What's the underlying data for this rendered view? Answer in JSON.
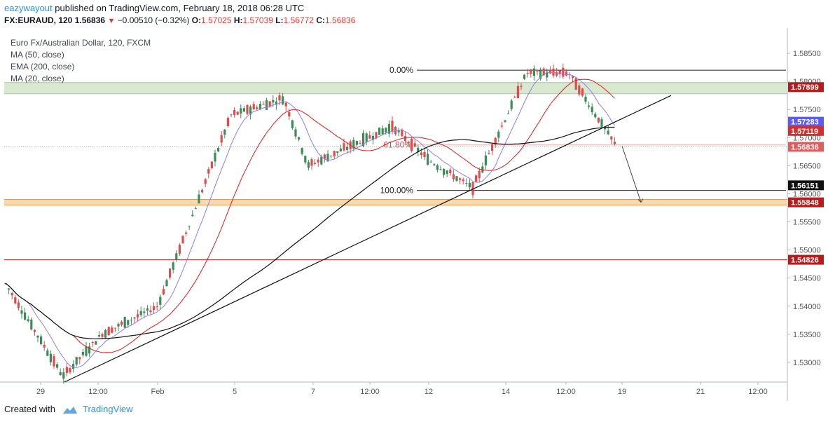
{
  "header": {
    "user": "eazywayout",
    "published_text": "published on TradingView.com, February 18, 2018 06:28 UTC",
    "symbol": "FX:EURAUD, 120",
    "last": "1.56836",
    "change": "−0.00510 (−0.32%)",
    "open_label": "O:",
    "open": "1.57025",
    "high_label": "H:",
    "high": "1.57039",
    "low_label": "L:",
    "low": "1.56772",
    "close_label": "C:",
    "close": "1.56836"
  },
  "legend": {
    "title": "Euro Fx/Australian Dollar, 120, FXCM",
    "ma50": "MA (50, close)",
    "ema200": "EMA (200, close)",
    "ma20": "MA (20, close)"
  },
  "footer": {
    "created_with": "Created with",
    "brand": "TradingView"
  },
  "colors": {
    "up": "#3c8c5a",
    "down": "#e04b4b",
    "ma20": "#8b7cf6",
    "ma50": "#e41a1c",
    "ema200": "#111111",
    "support_zone": "#f5cfa0",
    "resistance_zone": "#cfe3c4"
  },
  "chart_data": {
    "type": "candlestick",
    "title": "Euro Fx/Australian Dollar, 120, FXCM",
    "ylim": [
      1.5265,
      1.5895
    ],
    "y_ticks": [
      "1.58500",
      "1.58000",
      "1.57500",
      "1.57000",
      "1.56500",
      "1.56000",
      "1.55500",
      "1.55000",
      "1.54500",
      "1.54000",
      "1.53500",
      "1.53000"
    ],
    "x_ticks": [
      "29",
      "12:00",
      "Feb",
      "5",
      "7",
      "12:00",
      "12",
      "14",
      "12:00",
      "19",
      "21",
      "12:00"
    ],
    "price_labels": [
      {
        "text": "1.57899",
        "bg": "#b71c1c",
        "fg": "#ffffff",
        "value": 1.57899
      },
      {
        "text": "1.57283",
        "bg": "#5b5bf5",
        "fg": "#ffffff",
        "value": 1.57283
      },
      {
        "text": "1.57119",
        "bg": "#d32f2f",
        "fg": "#ffffff",
        "value": 1.57119
      },
      {
        "text": "1.56836",
        "bg": "#e35b5b",
        "fg": "#ffffff",
        "value": 1.56836
      },
      {
        "text": "1.56151",
        "bg": "#111111",
        "fg": "#ffffff",
        "value": 1.56151
      },
      {
        "text": "1.55848",
        "bg": "#b71c1c",
        "fg": "#ffffff",
        "value": 1.55848
      },
      {
        "text": "1.54826",
        "bg": "#b71c1c",
        "fg": "#ffffff",
        "value": 1.54826
      }
    ],
    "fibonacci": [
      {
        "label": "0.00%",
        "value": 1.582
      },
      {
        "label": "61.80%",
        "value": 1.5687
      },
      {
        "label": "100.00%",
        "value": 1.5606
      }
    ],
    "zones": [
      {
        "name": "resistance",
        "from": 1.5778,
        "to": 1.5798
      },
      {
        "name": "support",
        "from": 1.558,
        "to": 1.559
      }
    ],
    "horizontal_line": 1.54826,
    "ohlc_last": {
      "open": 1.57025,
      "high": 1.57039,
      "low": 1.56772,
      "close": 1.56836
    },
    "anchor_points": [
      {
        "t": "29",
        "price": 1.5275
      },
      {
        "t": "12:00",
        "price": 1.535
      },
      {
        "t": "Feb",
        "price": 1.54
      },
      {
        "t": "5",
        "price": 1.574
      },
      {
        "t": "6",
        "price": 1.577
      },
      {
        "t": "7",
        "price": 1.565
      },
      {
        "t": "12:00",
        "price": 1.572
      },
      {
        "t": "12",
        "price": 1.566
      },
      {
        "t": "13",
        "price": 1.561
      },
      {
        "t": "14",
        "price": 1.5815
      },
      {
        "t": "12:00",
        "price": 1.5815
      },
      {
        "t": "18",
        "price": 1.56836
      }
    ]
  }
}
